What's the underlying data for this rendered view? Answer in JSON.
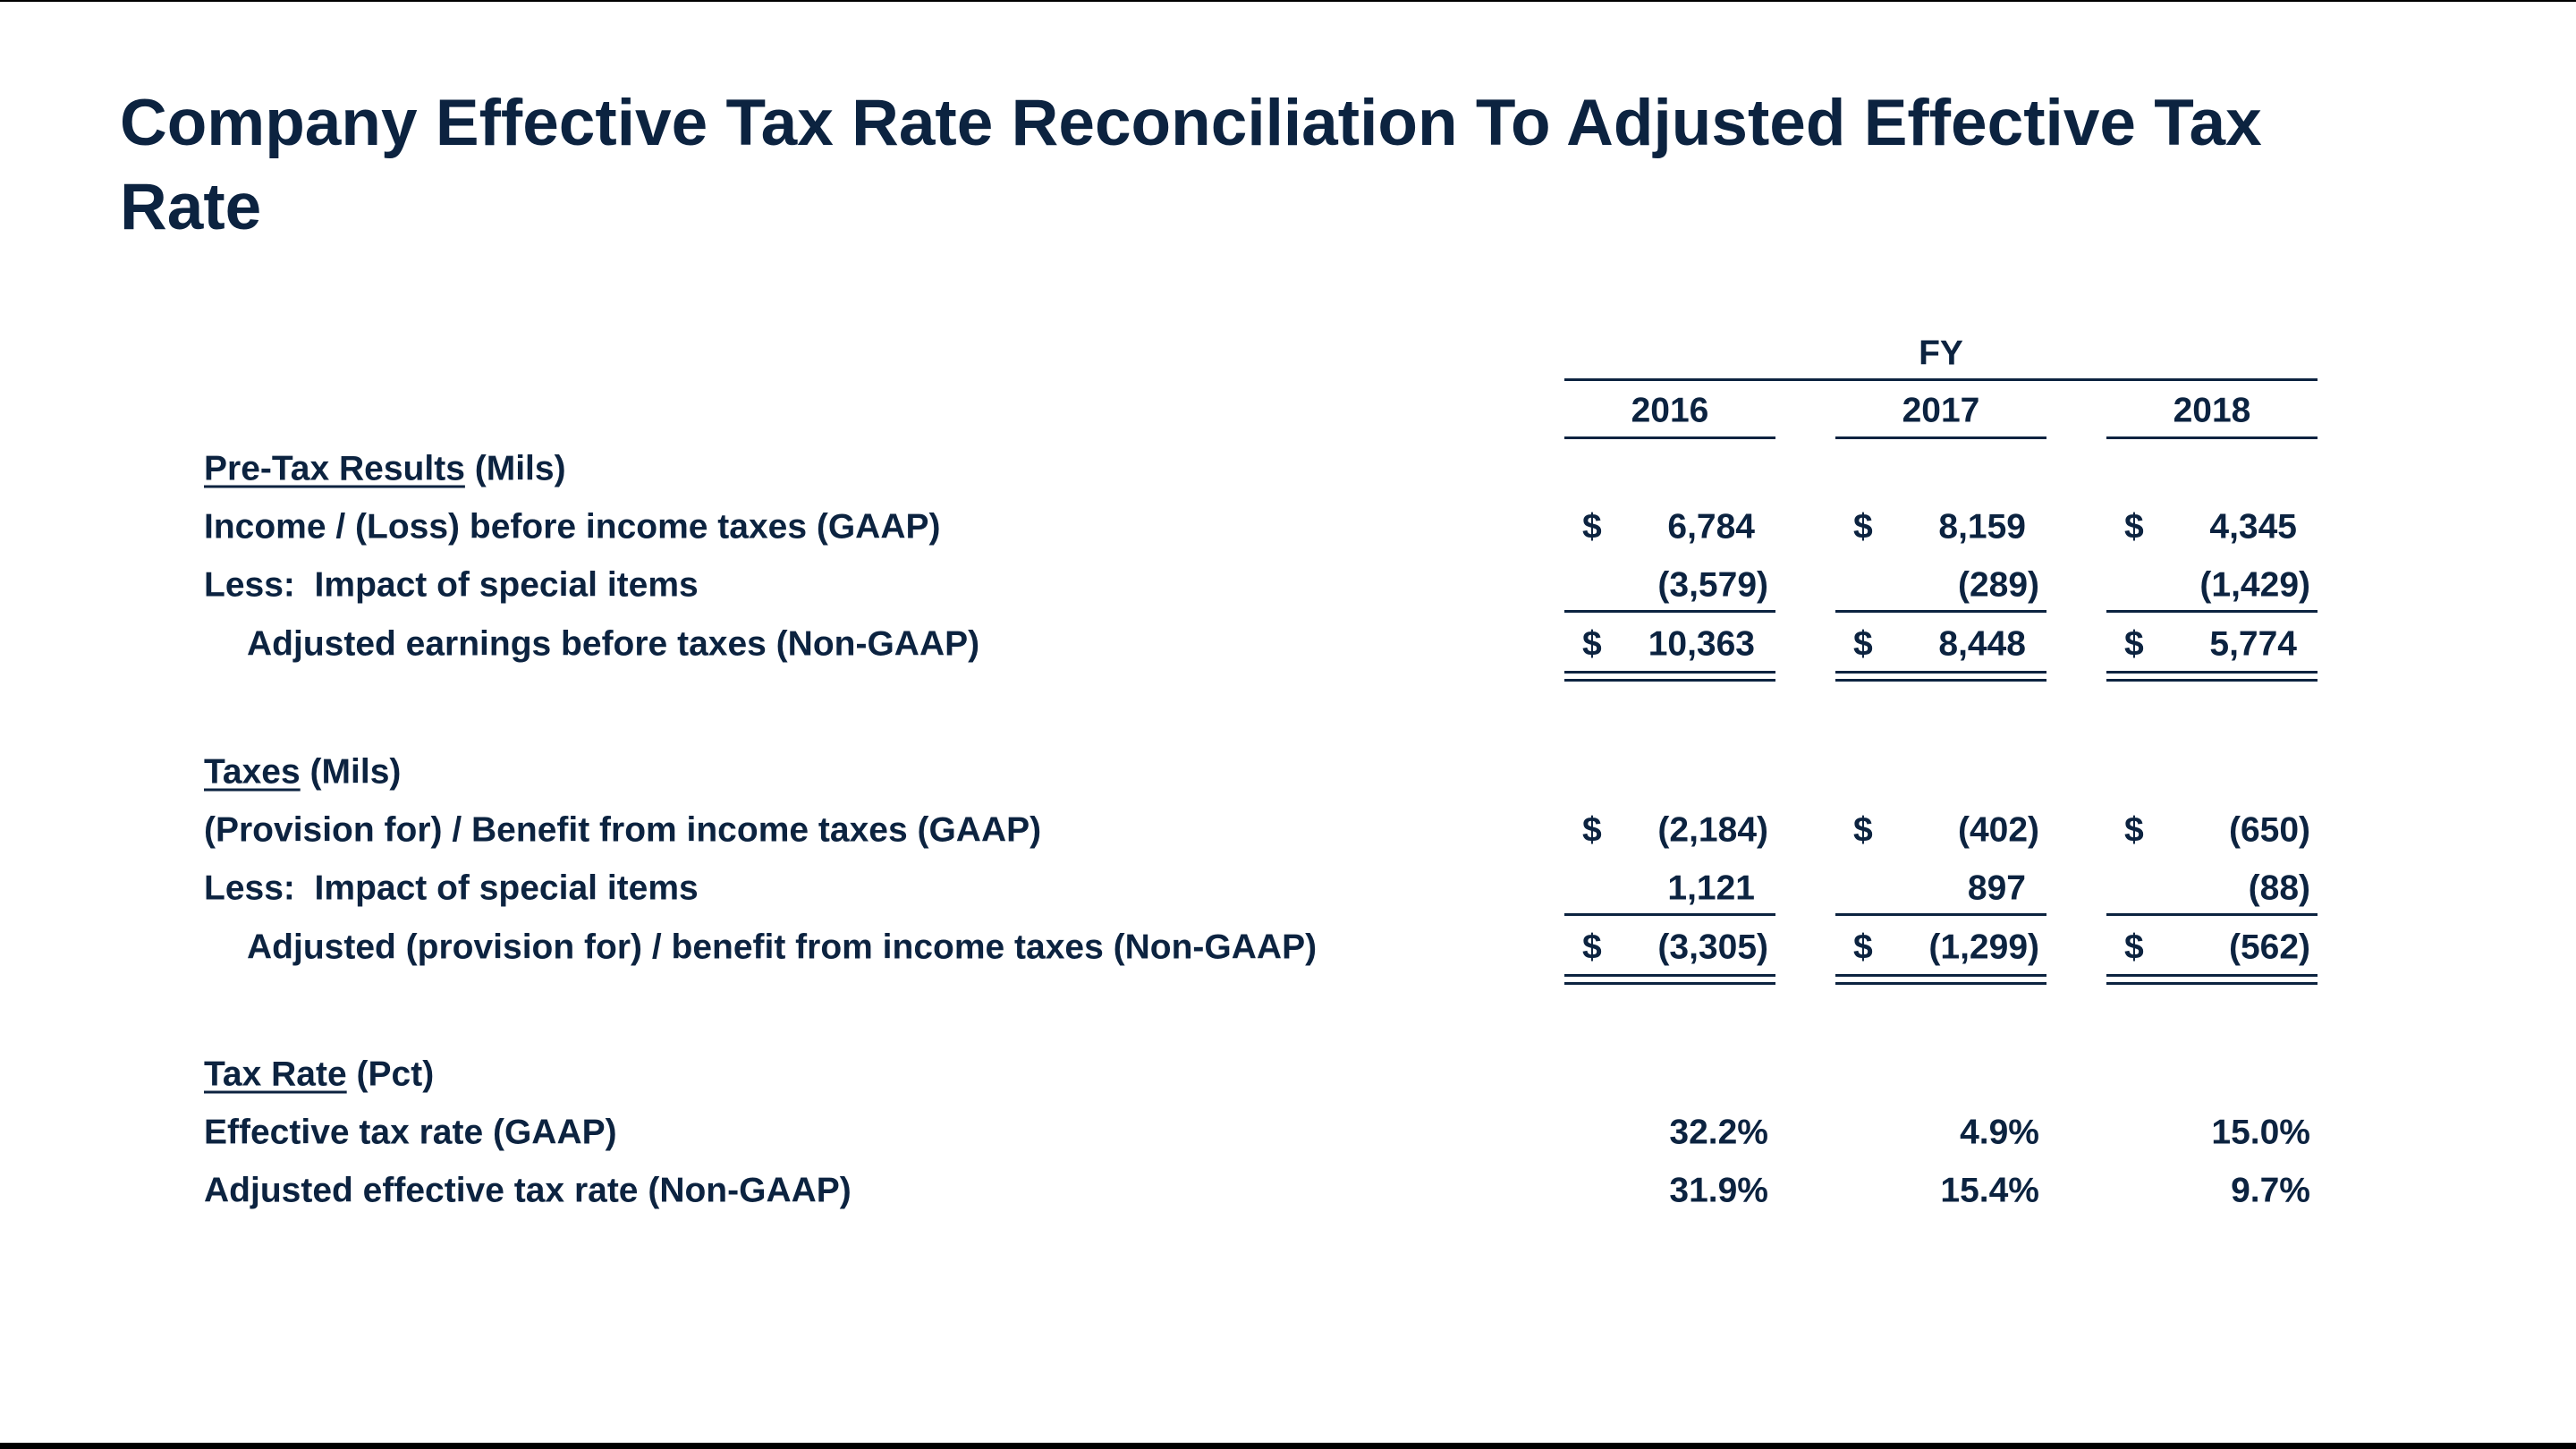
{
  "title": "Company Effective Tax Rate Reconciliation To Adjusted Effective Tax Rate",
  "table": {
    "group_header": "FY",
    "years": [
      "2016",
      "2017",
      "2018"
    ],
    "sections": [
      {
        "heading": "Pre-Tax Results",
        "unit": "(Mils)",
        "rows": [
          {
            "label": "Income / (Loss) before income taxes (GAAP)",
            "cells": [
              {
                "currency": "$",
                "amount": "6,784"
              },
              {
                "currency": "$",
                "amount": "8,159"
              },
              {
                "currency": "$",
                "amount": "4,345"
              }
            ]
          },
          {
            "label": "Less:  Impact of special items",
            "cells": [
              {
                "amount": "(3,579)"
              },
              {
                "amount": "(289)"
              },
              {
                "amount": "(1,429)"
              }
            ]
          },
          {
            "label": "Adjusted earnings before taxes (Non-GAAP)",
            "cells": [
              {
                "currency": "$",
                "amount": "10,363"
              },
              {
                "currency": "$",
                "amount": "8,448"
              },
              {
                "currency": "$",
                "amount": "5,774"
              }
            ]
          }
        ]
      },
      {
        "heading": "Taxes",
        "unit": "(Mils)",
        "rows": [
          {
            "label": "(Provision for) / Benefit from income taxes (GAAP)",
            "cells": [
              {
                "currency": "$",
                "amount": "(2,184)"
              },
              {
                "currency": "$",
                "amount": "(402)"
              },
              {
                "currency": "$",
                "amount": "(650)"
              }
            ]
          },
          {
            "label": "Less:  Impact of special items",
            "cells": [
              {
                "amount": "1,121"
              },
              {
                "amount": "897"
              },
              {
                "amount": "(88)"
              }
            ]
          },
          {
            "label": "Adjusted (provision for) / benefit from income taxes (Non-GAAP)",
            "cells": [
              {
                "currency": "$",
                "amount": "(3,305)"
              },
              {
                "currency": "$",
                "amount": "(1,299)"
              },
              {
                "currency": "$",
                "amount": "(562)"
              }
            ]
          }
        ]
      },
      {
        "heading": "Tax Rate",
        "unit": "(Pct)",
        "rows": [
          {
            "label": "Effective tax rate (GAAP)",
            "cells": [
              {
                "amount": "32.2%"
              },
              {
                "amount": "4.9%"
              },
              {
                "amount": "15.0%"
              }
            ]
          },
          {
            "label": "Adjusted effective tax rate (Non-GAAP)",
            "cells": [
              {
                "amount": "31.9%"
              },
              {
                "amount": "15.4%"
              },
              {
                "amount": "9.7%"
              }
            ]
          }
        ]
      }
    ]
  }
}
